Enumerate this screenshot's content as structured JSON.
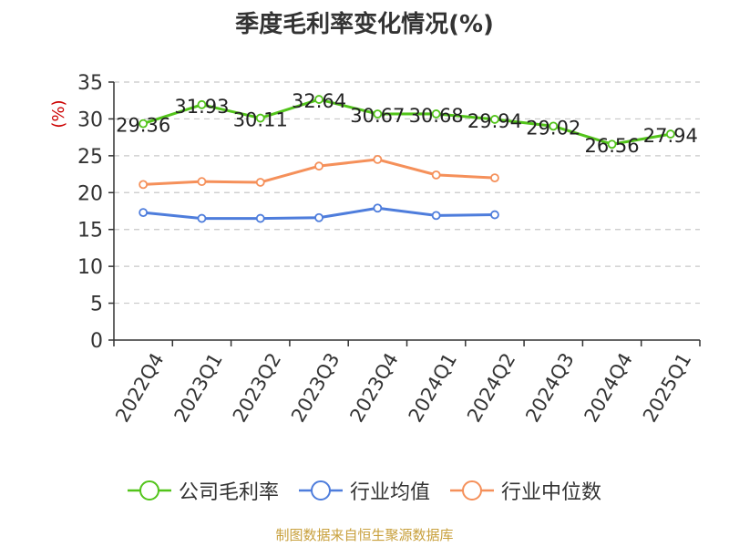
{
  "chart_data": {
    "type": "line",
    "title": "季度毛利率变化情况(%)",
    "ylabel": "(%)",
    "ylim": [
      0,
      35
    ],
    "yticks": [
      "0",
      "5",
      "10",
      "15",
      "20",
      "25",
      "30",
      "35"
    ],
    "categories": [
      "2022Q4",
      "2023Q1",
      "2023Q2",
      "2023Q3",
      "2023Q4",
      "2024Q1",
      "2024Q2",
      "2024Q3",
      "2024Q4",
      "2025Q1"
    ],
    "series": [
      {
        "name": "公司毛利率",
        "color": "#52c41a",
        "labeled": true,
        "values": [
          29.36,
          31.93,
          30.11,
          32.64,
          30.67,
          30.68,
          29.94,
          29.02,
          26.56,
          27.94
        ]
      },
      {
        "name": "行业均值",
        "color": "#4e7ddc",
        "labeled": false,
        "values": [
          17.3,
          16.5,
          16.5,
          16.6,
          17.9,
          16.9,
          17.0,
          null,
          null,
          null
        ]
      },
      {
        "name": "行业中位数",
        "color": "#f5905a",
        "labeled": false,
        "values": [
          21.1,
          21.5,
          21.4,
          23.6,
          24.5,
          22.4,
          22.0,
          null,
          null,
          null
        ]
      }
    ],
    "grid": true,
    "legend_position": "bottom"
  },
  "source": "制图数据来自恒生聚源数据库"
}
